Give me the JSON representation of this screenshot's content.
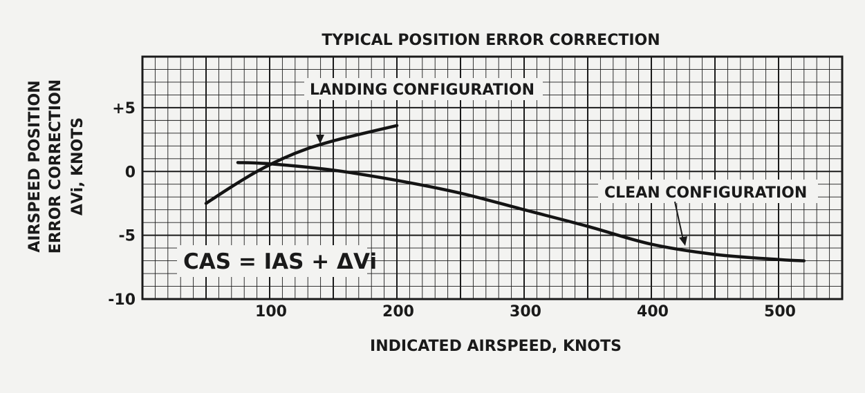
{
  "chart_data": {
    "type": "line",
    "title": "TYPICAL POSITION ERROR CORRECTION",
    "xlabel": "INDICATED AIRSPEED, KNOTS",
    "ylabel_lines": [
      "AIRSPEED POSITION",
      "ERROR CORRECTION",
      "ΔVi, KNOTS"
    ],
    "xlim": [
      0,
      550
    ],
    "ylim": [
      -10,
      9
    ],
    "x_ticks": [
      {
        "value": 100,
        "label": "100"
      },
      {
        "value": 200,
        "label": "200"
      },
      {
        "value": 300,
        "label": "300"
      },
      {
        "value": 400,
        "label": "400"
      },
      {
        "value": 500,
        "label": "500"
      }
    ],
    "y_ticks": [
      {
        "value": 5,
        "label": "+5"
      },
      {
        "value": 0,
        "label": "0"
      },
      {
        "value": -5,
        "label": "-5"
      },
      {
        "value": -10,
        "label": "-10"
      }
    ],
    "grid": true,
    "formula": "CAS = IAS + ΔVi",
    "series": [
      {
        "name": "LANDING CONFIGURATION",
        "x": [
          50,
          70,
          90,
          110,
          130,
          150,
          170,
          200
        ],
        "y": [
          -2.5,
          -1.2,
          0,
          1.0,
          1.8,
          2.4,
          2.9,
          3.6
        ]
      },
      {
        "name": "CLEAN CONFIGURATION",
        "x": [
          75,
          100,
          150,
          200,
          250,
          300,
          350,
          400,
          450,
          500,
          520
        ],
        "y": [
          0.7,
          0.6,
          0.1,
          -0.7,
          -1.7,
          -3.0,
          -4.3,
          -5.7,
          -6.5,
          -6.9,
          -7.0
        ]
      }
    ],
    "annotations": [
      {
        "text": "LANDING CONFIGURATION",
        "series": 0
      },
      {
        "text": "CLEAN CONFIGURATION",
        "series": 1
      }
    ]
  }
}
